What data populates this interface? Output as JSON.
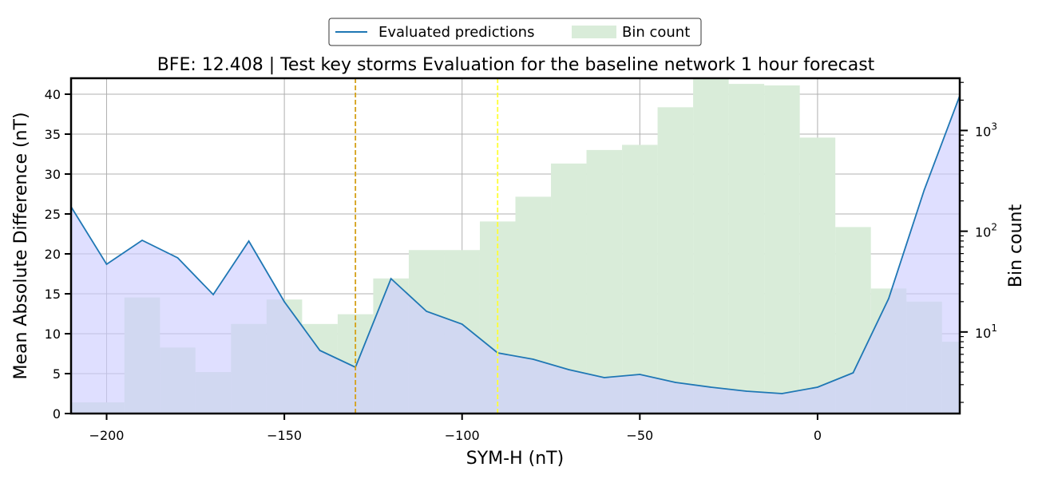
{
  "chart_data": {
    "type": "line",
    "title": "BFE: 12.408 | Test key storms Evaluation for the baseline network 1 hour forecast",
    "xlabel": "SYM-H (nT)",
    "ylabel": "Mean Absolute Difference (nT)",
    "y2label": "Bin count",
    "xlim": [
      -210,
      40
    ],
    "ylim": [
      0,
      42
    ],
    "y2lim_log": [
      1.55,
      3300
    ],
    "y2scale": "log",
    "grid": true,
    "legend_position": "top-center",
    "x_ticks": [
      -200,
      -150,
      -100,
      -50,
      0
    ],
    "x_tick_labels": [
      "−200",
      "−150",
      "−100",
      "−50",
      "0"
    ],
    "y_ticks": [
      0,
      5,
      10,
      15,
      20,
      25,
      30,
      35,
      40
    ],
    "y_tick_labels": [
      "0",
      "5",
      "10",
      "15",
      "20",
      "25",
      "30",
      "35",
      "40"
    ],
    "y2_ticks": [
      {
        "value": 10,
        "base": "10",
        "exp": "1"
      },
      {
        "value": 100,
        "base": "10",
        "exp": "2"
      },
      {
        "value": 1000,
        "base": "10",
        "exp": "3"
      }
    ],
    "series": [
      {
        "name": "Evaluated predictions",
        "kind": "line",
        "color": "#1f77b4",
        "fill_color": "#ccccff",
        "x": [
          -210,
          -200,
          -190,
          -180,
          -170,
          -160,
          -150,
          -140,
          -130,
          -120,
          -110,
          -100,
          -90,
          -80,
          -70,
          -60,
          -50,
          -40,
          -30,
          -20,
          -10,
          0,
          10,
          20,
          30,
          40
        ],
        "values": [
          25.9,
          18.7,
          21.7,
          19.5,
          14.9,
          21.6,
          14.0,
          7.9,
          5.8,
          16.9,
          12.8,
          11.2,
          7.6,
          6.8,
          5.5,
          4.5,
          4.9,
          3.9,
          3.3,
          2.8,
          2.5,
          3.3,
          5.1,
          14.4,
          28.0,
          39.8
        ]
      },
      {
        "name": "Bin count",
        "kind": "histogram",
        "color": "#d9ecd9",
        "bin_edges": [
          -210,
          -205,
          -195,
          -185,
          -175,
          -165,
          -155,
          -145,
          -135,
          -125,
          -115,
          -105,
          -95,
          -85,
          -75,
          -65,
          -55,
          -45,
          -35,
          -25,
          -15,
          -5,
          5,
          15,
          25,
          35,
          40
        ],
        "values": [
          2,
          2,
          22,
          7,
          4,
          12,
          21,
          12,
          15,
          34,
          65,
          65,
          125,
          220,
          470,
          640,
          720,
          1700,
          3300,
          2900,
          2800,
          850,
          110,
          27,
          20,
          8
        ]
      }
    ],
    "vlines": [
      {
        "x": -130,
        "color": "#d4a017",
        "style": "dashed"
      },
      {
        "x": -90,
        "color": "#ffff33",
        "style": "dashed"
      }
    ]
  }
}
